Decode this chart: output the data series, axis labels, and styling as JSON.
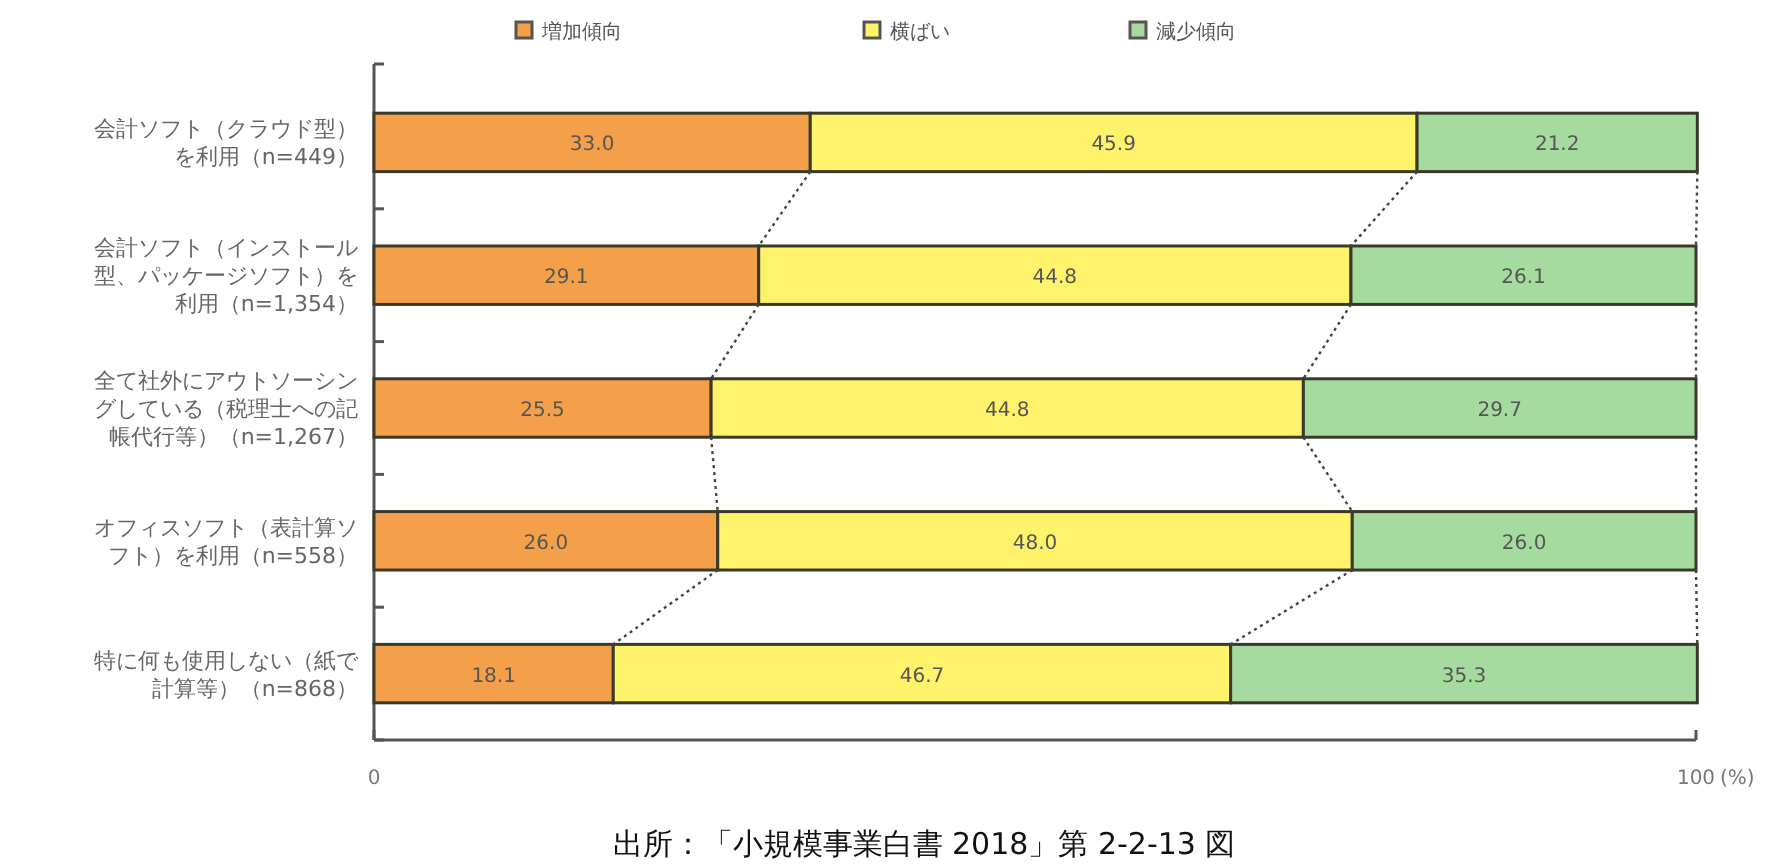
{
  "chart_data": {
    "type": "bar",
    "orientation": "horizontal",
    "stacked": true,
    "legend": "top",
    "grid": false,
    "categories": [
      "会計ソフト（クラウド型）を利用（n=449）",
      "会計ソフト（インストール型、パッケージソフト）を利用（n=1,354）",
      "全て社外にアウトソーシングしている（税理士への記帳代行等）（n=1,267）",
      "オフィスソフト（表計算ソフト）を利用（n=558）",
      "特に何も使用しない（紙で計算等）（n=868）"
    ],
    "series": [
      {
        "name": "増加傾向",
        "color": "#f4a04a",
        "values": [
          33.0,
          29.1,
          25.5,
          26.0,
          18.1
        ],
        "value_labels": [
          "33.0",
          "29.1",
          "25.5",
          "26.0",
          "18.1"
        ]
      },
      {
        "name": "横ばい",
        "color": "#fff36b",
        "values": [
          45.9,
          44.8,
          44.8,
          48.0,
          46.7
        ],
        "value_labels": [
          "45.9",
          "44.8",
          "44.8",
          "48.0",
          "46.7"
        ]
      },
      {
        "name": "減少傾向",
        "color": "#a6dba0",
        "values": [
          21.2,
          26.1,
          29.7,
          26.0,
          35.3
        ],
        "value_labels": [
          "21.2",
          "26.1",
          "29.7",
          "26.0",
          "35.3"
        ]
      }
    ],
    "xlim": [
      0,
      100
    ],
    "xticks": [
      0,
      100
    ],
    "xlabel": "(%)",
    "annotations": [
      "出所：「小規模事業白書 2018」第 2-2-13 図"
    ]
  }
}
